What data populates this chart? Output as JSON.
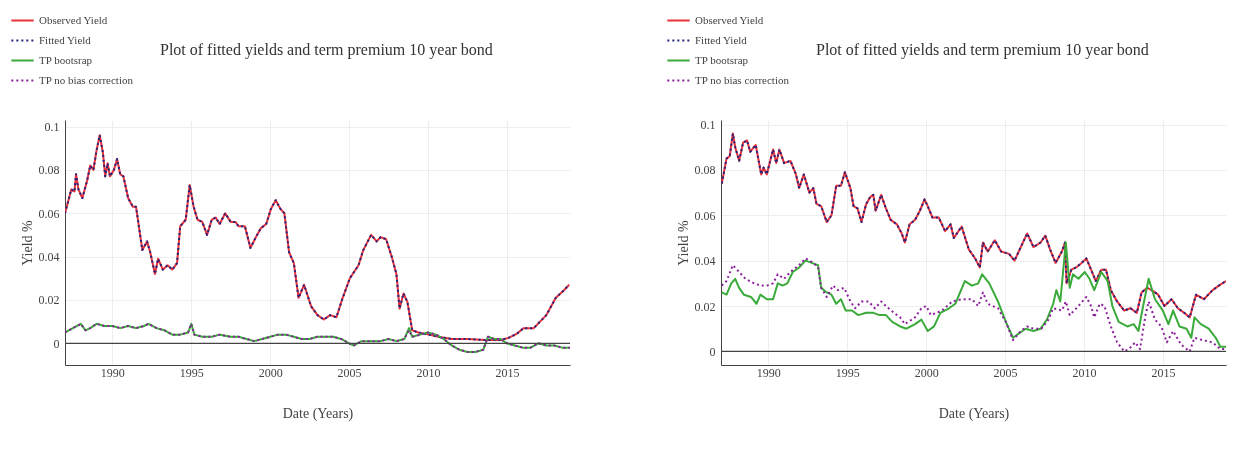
{
  "chart_data": [
    {
      "type": "line",
      "title": "Plot of fitted yields and term premium 10 year bond",
      "xlabel": "Date (Years)",
      "ylabel": "Yield %",
      "xlim": [
        1987,
        2019
      ],
      "xticks": [
        1990,
        1995,
        2000,
        2005,
        2010,
        2015
      ],
      "ylim": [
        -0.01,
        0.103
      ],
      "yticks": [
        0,
        0.02,
        0.04,
        0.06,
        0.08,
        0.1
      ],
      "grid": true,
      "legend": "top left",
      "ref_lines": [
        {
          "axis": "y",
          "value": 0,
          "color": "#444444"
        }
      ],
      "series": [
        {
          "name": "Observed Yield",
          "color": "#e8323c",
          "line_style": "solid",
          "x": [
            1987.0,
            1987.4,
            1987.6,
            1987.7,
            1987.85,
            1988.1,
            1988.4,
            1988.6,
            1988.8,
            1989.0,
            1989.2,
            1989.4,
            1989.55,
            1989.7,
            1989.85,
            1990.1,
            1990.3,
            1990.5,
            1990.7,
            1991.0,
            1991.3,
            1991.5,
            1991.9,
            1992.2,
            1992.4,
            1992.7,
            1992.9,
            1993.2,
            1993.5,
            1993.8,
            1994.1,
            1994.3,
            1994.65,
            1994.9,
            1995.15,
            1995.4,
            1995.7,
            1996.0,
            1996.3,
            1996.55,
            1996.8,
            1997.15,
            1997.5,
            1997.8,
            1998.0,
            1998.4,
            1998.75,
            1999.1,
            1999.4,
            1999.75,
            2000.05,
            2000.35,
            2000.65,
            2000.9,
            2001.2,
            2001.5,
            2001.8,
            2002.15,
            2002.6,
            2003.0,
            2003.4,
            2003.8,
            2004.2,
            2004.55,
            2005.05,
            2005.6,
            2005.9,
            2006.4,
            2006.75,
            2007.0,
            2007.35,
            2007.7,
            2008.0,
            2008.2,
            2008.45,
            2008.7,
            2009.0,
            2009.4,
            2010.05,
            2010.65,
            2011.5,
            2012.5,
            2013.6,
            2014.6,
            2015.1,
            2015.65,
            2016.05,
            2016.7,
            2017.1,
            2017.5,
            2018.1,
            2018.55,
            2018.95
          ],
          "values": [
            0.06,
            0.071,
            0.07,
            0.078,
            0.071,
            0.067,
            0.075,
            0.082,
            0.08,
            0.089,
            0.096,
            0.088,
            0.077,
            0.083,
            0.077,
            0.08,
            0.085,
            0.078,
            0.077,
            0.067,
            0.063,
            0.063,
            0.043,
            0.047,
            0.042,
            0.032,
            0.039,
            0.034,
            0.036,
            0.034,
            0.037,
            0.054,
            0.057,
            0.073,
            0.063,
            0.057,
            0.056,
            0.05,
            0.057,
            0.058,
            0.055,
            0.06,
            0.056,
            0.056,
            0.054,
            0.054,
            0.044,
            0.049,
            0.053,
            0.055,
            0.062,
            0.066,
            0.062,
            0.06,
            0.042,
            0.037,
            0.021,
            0.027,
            0.017,
            0.013,
            0.011,
            0.013,
            0.012,
            0.02,
            0.03,
            0.036,
            0.043,
            0.05,
            0.047,
            0.049,
            0.048,
            0.04,
            0.032,
            0.016,
            0.023,
            0.019,
            0.006,
            0.005,
            0.004,
            0.003,
            0.002,
            0.002,
            0.0015,
            0.0015,
            0.0025,
            0.0045,
            0.007,
            0.007,
            0.01,
            0.013,
            0.021,
            0.024,
            0.027
          ]
        },
        {
          "name": "Fitted Yield",
          "color": "#23237e",
          "line_style": "dotted",
          "x": [
            1987.0,
            1987.4,
            1987.6,
            1987.7,
            1987.85,
            1988.1,
            1988.4,
            1988.6,
            1988.8,
            1989.0,
            1989.2,
            1989.4,
            1989.55,
            1989.7,
            1989.85,
            1990.1,
            1990.3,
            1990.5,
            1990.7,
            1991.0,
            1991.3,
            1991.5,
            1991.9,
            1992.2,
            1992.4,
            1992.7,
            1992.9,
            1993.2,
            1993.5,
            1993.8,
            1994.1,
            1994.3,
            1994.65,
            1994.9,
            1995.15,
            1995.4,
            1995.7,
            1996.0,
            1996.3,
            1996.55,
            1996.8,
            1997.15,
            1997.5,
            1997.8,
            1998.0,
            1998.4,
            1998.75,
            1999.1,
            1999.4,
            1999.75,
            2000.05,
            2000.35,
            2000.65,
            2000.9,
            2001.2,
            2001.5,
            2001.8,
            2002.15,
            2002.6,
            2003.0,
            2003.4,
            2003.8,
            2004.2,
            2004.55,
            2005.05,
            2005.6,
            2005.9,
            2006.4,
            2006.75,
            2007.0,
            2007.35,
            2007.7,
            2008.0,
            2008.2,
            2008.45,
            2008.7,
            2009.0,
            2009.4,
            2010.05,
            2010.65,
            2011.5,
            2012.5,
            2013.6,
            2014.6,
            2015.1,
            2015.65,
            2016.05,
            2016.7,
            2017.1,
            2017.5,
            2018.1,
            2018.55,
            2018.95
          ],
          "values": [
            0.06,
            0.071,
            0.07,
            0.078,
            0.071,
            0.067,
            0.075,
            0.082,
            0.08,
            0.089,
            0.096,
            0.088,
            0.077,
            0.083,
            0.077,
            0.08,
            0.085,
            0.078,
            0.077,
            0.067,
            0.063,
            0.063,
            0.043,
            0.047,
            0.042,
            0.032,
            0.039,
            0.034,
            0.036,
            0.034,
            0.037,
            0.054,
            0.057,
            0.073,
            0.063,
            0.057,
            0.056,
            0.05,
            0.057,
            0.058,
            0.055,
            0.06,
            0.056,
            0.056,
            0.054,
            0.054,
            0.044,
            0.049,
            0.053,
            0.055,
            0.062,
            0.066,
            0.062,
            0.06,
            0.042,
            0.037,
            0.021,
            0.027,
            0.017,
            0.013,
            0.011,
            0.013,
            0.012,
            0.02,
            0.03,
            0.036,
            0.043,
            0.05,
            0.047,
            0.049,
            0.048,
            0.04,
            0.032,
            0.016,
            0.023,
            0.019,
            0.006,
            0.005,
            0.004,
            0.003,
            0.002,
            0.002,
            0.0015,
            0.0015,
            0.0025,
            0.0045,
            0.007,
            0.007,
            0.01,
            0.013,
            0.021,
            0.024,
            0.027
          ]
        },
        {
          "name": "TP bootsrap",
          "color": "#3aab3a",
          "line_style": "solid",
          "x": [
            1987,
            1987.5,
            1988,
            1988.3,
            1988.6,
            1989,
            1989.5,
            1990,
            1990.5,
            1991,
            1991.5,
            1992,
            1992.3,
            1992.8,
            1993.3,
            1993.8,
            1994.3,
            1994.8,
            1995,
            1995.2,
            1995.7,
            1996.3,
            1996.8,
            1997.5,
            1998,
            1998.5,
            1999,
            1999.5,
            2000,
            2000.5,
            2001,
            2001.5,
            2002,
            2002.5,
            2003,
            2003.5,
            2004,
            2004.5,
            2005,
            2005.3,
            2005.8,
            2006.5,
            2007,
            2007.5,
            2008,
            2008.5,
            2008.8,
            2009,
            2009.5,
            2010,
            2010.5,
            2011,
            2011.5,
            2012,
            2012.5,
            2013,
            2013.5,
            2013.8,
            2014.2,
            2014.6,
            2015,
            2015.5,
            2016,
            2016.5,
            2017,
            2017.5,
            2018,
            2018.5,
            2019
          ],
          "values": [
            0.005,
            0.007,
            0.009,
            0.006,
            0.007,
            0.009,
            0.008,
            0.008,
            0.007,
            0.008,
            0.007,
            0.008,
            0.009,
            0.007,
            0.006,
            0.004,
            0.004,
            0.005,
            0.009,
            0.004,
            0.003,
            0.003,
            0.004,
            0.003,
            0.003,
            0.002,
            0.001,
            0.002,
            0.003,
            0.004,
            0.004,
            0.003,
            0.002,
            0.002,
            0.003,
            0.003,
            0.003,
            0.002,
            0.0,
            -0.001,
            0.001,
            0.001,
            0.001,
            0.002,
            0.001,
            0.002,
            0.007,
            0.003,
            0.004,
            0.005,
            0.004,
            0.002,
            -0.001,
            -0.003,
            -0.004,
            -0.004,
            -0.003,
            0.003,
            0.002,
            0.002,
            0.0,
            -0.001,
            -0.002,
            -0.002,
            0.0,
            -0.001,
            -0.001,
            -0.002,
            -0.002
          ]
        },
        {
          "name": "TP no bias correction",
          "color": "#8b1f9b",
          "line_style": "dotted",
          "x": [
            1987,
            1987.5,
            1988,
            1988.3,
            1988.6,
            1989,
            1989.5,
            1990,
            1990.5,
            1991,
            1991.5,
            1992,
            1992.3,
            1992.8,
            1993.3,
            1993.8,
            1994.3,
            1994.8,
            1995,
            1995.2,
            1995.7,
            1996.3,
            1996.8,
            1997.5,
            1998,
            1998.5,
            1999,
            1999.5,
            2000,
            2000.5,
            2001,
            2001.5,
            2002,
            2002.5,
            2003,
            2003.5,
            2004,
            2004.5,
            2005,
            2005.3,
            2005.8,
            2006.5,
            2007,
            2007.5,
            2008,
            2008.5,
            2008.8,
            2009,
            2009.5,
            2010,
            2010.5,
            2011,
            2011.5,
            2012,
            2012.5,
            2013,
            2013.5,
            2013.8,
            2014.2,
            2014.6,
            2015,
            2015.5,
            2016,
            2016.5,
            2017,
            2017.5,
            2018,
            2018.5,
            2019
          ],
          "values": [
            0.005,
            0.007,
            0.009,
            0.006,
            0.007,
            0.009,
            0.008,
            0.008,
            0.007,
            0.008,
            0.007,
            0.008,
            0.009,
            0.007,
            0.006,
            0.004,
            0.004,
            0.005,
            0.009,
            0.004,
            0.003,
            0.003,
            0.004,
            0.003,
            0.003,
            0.002,
            0.001,
            0.002,
            0.003,
            0.004,
            0.004,
            0.003,
            0.002,
            0.002,
            0.003,
            0.003,
            0.003,
            0.002,
            0.0,
            -0.001,
            0.001,
            0.001,
            0.001,
            0.002,
            0.001,
            0.002,
            0.006,
            0.003,
            0.004,
            0.005,
            0.004,
            0.002,
            -0.001,
            -0.003,
            -0.004,
            -0.004,
            -0.003,
            0.003,
            0.002,
            0.002,
            0.0,
            -0.001,
            -0.002,
            -0.002,
            0.0,
            -0.001,
            -0.001,
            -0.002,
            -0.002
          ]
        }
      ]
    },
    {
      "type": "line",
      "title": "Plot of fitted yields and term premium 10 year bond",
      "xlabel": "Date (Years)",
      "ylabel": "Yield %",
      "xlim": [
        1987,
        2019
      ],
      "xticks": [
        1990,
        1995,
        2000,
        2005,
        2010,
        2015
      ],
      "ylim": [
        -0.006,
        0.102
      ],
      "yticks": [
        0,
        0.02,
        0.04,
        0.06,
        0.08,
        0.1
      ],
      "grid": true,
      "legend": "top left",
      "ref_lines": [
        {
          "axis": "y",
          "value": 0,
          "color": "#444444"
        }
      ],
      "series": [
        {
          "name": "Observed Yield",
          "color": "#e8323c",
          "line_style": "solid",
          "x": [
            1987.05,
            1987.35,
            1987.55,
            1987.75,
            1987.9,
            1988.15,
            1988.4,
            1988.65,
            1988.85,
            1989.2,
            1989.55,
            1989.7,
            1989.9,
            1990.3,
            1990.5,
            1990.7,
            1991.0,
            1991.4,
            1991.75,
            1991.95,
            1992.25,
            1992.6,
            1992.85,
            1993.05,
            1993.35,
            1993.7,
            1994.0,
            1994.3,
            1994.6,
            1994.85,
            1995.2,
            1995.4,
            1995.65,
            1995.9,
            1996.2,
            1996.45,
            1996.65,
            1996.8,
            1997.15,
            1997.45,
            1997.75,
            1998.15,
            1998.45,
            1998.65,
            1998.95,
            1999.3,
            1999.6,
            1999.9,
            2000.1,
            2000.4,
            2000.8,
            2001.2,
            2001.55,
            2001.75,
            2002.25,
            2002.7,
            2003.1,
            2003.4,
            2003.6,
            2003.9,
            2004.35,
            2004.75,
            2005.25,
            2005.6,
            2006.0,
            2006.4,
            2006.8,
            2007.25,
            2007.55,
            2007.85,
            2008.2,
            2008.6,
            2008.8,
            2008.9,
            2009.2,
            2009.5,
            2009.85,
            2010.15,
            2010.45,
            2010.75,
            2011.1,
            2011.4,
            2011.7,
            2012.1,
            2012.55,
            2012.95,
            2013.35,
            2013.65,
            2014.0,
            2014.3,
            2014.7,
            2015.1,
            2015.55,
            2015.95,
            2016.35,
            2016.7,
            2017.1,
            2017.6,
            2018.15,
            2018.55,
            2019.0
          ],
          "values": [
            0.074,
            0.085,
            0.086,
            0.096,
            0.09,
            0.084,
            0.092,
            0.093,
            0.088,
            0.091,
            0.078,
            0.081,
            0.078,
            0.089,
            0.083,
            0.089,
            0.083,
            0.084,
            0.078,
            0.072,
            0.078,
            0.07,
            0.072,
            0.065,
            0.064,
            0.057,
            0.06,
            0.073,
            0.073,
            0.079,
            0.072,
            0.064,
            0.063,
            0.057,
            0.065,
            0.068,
            0.069,
            0.062,
            0.069,
            0.063,
            0.058,
            0.056,
            0.052,
            0.048,
            0.056,
            0.058,
            0.062,
            0.067,
            0.064,
            0.059,
            0.059,
            0.053,
            0.056,
            0.05,
            0.055,
            0.045,
            0.041,
            0.037,
            0.048,
            0.044,
            0.049,
            0.044,
            0.043,
            0.04,
            0.046,
            0.052,
            0.046,
            0.048,
            0.051,
            0.045,
            0.039,
            0.044,
            0.048,
            0.03,
            0.036,
            0.037,
            0.039,
            0.041,
            0.036,
            0.031,
            0.036,
            0.036,
            0.027,
            0.022,
            0.018,
            0.019,
            0.017,
            0.026,
            0.028,
            0.027,
            0.025,
            0.02,
            0.023,
            0.019,
            0.017,
            0.015,
            0.025,
            0.023,
            0.027,
            0.029,
            0.031
          ]
        },
        {
          "name": "Fitted Yield",
          "color": "#23237e",
          "line_style": "dotted",
          "x": [
            1987.05,
            1987.35,
            1987.55,
            1987.75,
            1987.9,
            1988.15,
            1988.4,
            1988.65,
            1988.85,
            1989.2,
            1989.55,
            1989.7,
            1989.9,
            1990.3,
            1990.5,
            1990.7,
            1991.0,
            1991.4,
            1991.75,
            1991.95,
            1992.25,
            1992.6,
            1992.85,
            1993.05,
            1993.35,
            1993.7,
            1994.0,
            1994.3,
            1994.6,
            1994.85,
            1995.2,
            1995.4,
            1995.65,
            1995.9,
            1996.2,
            1996.45,
            1996.65,
            1996.8,
            1997.15,
            1997.45,
            1997.75,
            1998.15,
            1998.45,
            1998.65,
            1998.95,
            1999.3,
            1999.6,
            1999.9,
            2000.1,
            2000.4,
            2000.8,
            2001.2,
            2001.55,
            2001.75,
            2002.25,
            2002.7,
            2003.1,
            2003.4,
            2003.6,
            2003.9,
            2004.35,
            2004.75,
            2005.25,
            2005.6,
            2006.0,
            2006.4,
            2006.8,
            2007.25,
            2007.55,
            2007.85,
            2008.2,
            2008.6,
            2008.8,
            2008.9,
            2009.2,
            2009.5,
            2009.85,
            2010.15,
            2010.45,
            2010.75,
            2011.1,
            2011.4,
            2011.7,
            2012.1,
            2012.55,
            2012.95,
            2013.35,
            2013.65,
            2014.0,
            2014.3,
            2014.7,
            2015.1,
            2015.55,
            2015.95,
            2016.35,
            2016.7,
            2017.1,
            2017.6,
            2018.15,
            2018.55,
            2019.0
          ],
          "values": [
            0.074,
            0.085,
            0.086,
            0.096,
            0.09,
            0.084,
            0.092,
            0.093,
            0.088,
            0.091,
            0.078,
            0.081,
            0.078,
            0.089,
            0.083,
            0.089,
            0.083,
            0.084,
            0.078,
            0.072,
            0.078,
            0.07,
            0.072,
            0.065,
            0.064,
            0.057,
            0.06,
            0.073,
            0.073,
            0.079,
            0.072,
            0.064,
            0.063,
            0.057,
            0.065,
            0.068,
            0.069,
            0.062,
            0.069,
            0.063,
            0.058,
            0.056,
            0.052,
            0.048,
            0.056,
            0.058,
            0.062,
            0.067,
            0.064,
            0.059,
            0.059,
            0.053,
            0.056,
            0.05,
            0.055,
            0.045,
            0.041,
            0.037,
            0.048,
            0.044,
            0.049,
            0.044,
            0.043,
            0.04,
            0.046,
            0.052,
            0.046,
            0.048,
            0.051,
            0.045,
            0.039,
            0.044,
            0.048,
            0.03,
            0.036,
            0.037,
            0.039,
            0.041,
            0.036,
            0.031,
            0.036,
            0.036,
            0.027,
            0.022,
            0.018,
            0.019,
            0.017,
            0.026,
            0.028,
            0.027,
            0.025,
            0.02,
            0.023,
            0.019,
            0.017,
            0.015,
            0.025,
            0.023,
            0.027,
            0.029,
            0.031
          ]
        },
        {
          "name": "TP bootsrap",
          "color": "#3aab3a",
          "line_style": "solid",
          "x": [
            1987.05,
            1987.35,
            1987.65,
            1987.9,
            1988.15,
            1988.45,
            1988.9,
            1989.25,
            1989.5,
            1989.9,
            1990.3,
            1990.6,
            1990.9,
            1991.2,
            1991.55,
            1991.95,
            1992.35,
            1992.75,
            1993.15,
            1993.35,
            1993.7,
            1994.0,
            1994.3,
            1994.6,
            1994.9,
            1995.3,
            1995.7,
            1996.2,
            1996.65,
            1997.05,
            1997.45,
            1997.85,
            1998.35,
            1998.75,
            1999.3,
            1999.7,
            2000.1,
            2000.5,
            2000.9,
            2001.45,
            2001.85,
            2002.45,
            2002.9,
            2003.3,
            2003.55,
            2004.0,
            2004.55,
            2005.05,
            2005.5,
            2005.9,
            2006.3,
            2006.8,
            2007.25,
            2007.65,
            2008.05,
            2008.25,
            2008.5,
            2008.85,
            2009.1,
            2009.3,
            2009.65,
            2010.05,
            2010.35,
            2010.65,
            2011.1,
            2011.5,
            2011.8,
            2012.2,
            2012.75,
            2013.15,
            2013.45,
            2013.75,
            2014.1,
            2014.5,
            2015.0,
            2015.35,
            2015.65,
            2016.05,
            2016.5,
            2016.8,
            2017.0,
            2017.4,
            2017.9,
            2018.35,
            2018.65,
            2019.0
          ],
          "values": [
            0.026,
            0.025,
            0.03,
            0.032,
            0.028,
            0.025,
            0.024,
            0.021,
            0.025,
            0.023,
            0.023,
            0.03,
            0.029,
            0.03,
            0.035,
            0.037,
            0.04,
            0.039,
            0.038,
            0.028,
            0.026,
            0.025,
            0.021,
            0.023,
            0.018,
            0.018,
            0.016,
            0.017,
            0.017,
            0.016,
            0.016,
            0.013,
            0.011,
            0.01,
            0.012,
            0.014,
            0.009,
            0.011,
            0.017,
            0.019,
            0.021,
            0.031,
            0.029,
            0.03,
            0.034,
            0.03,
            0.022,
            0.013,
            0.006,
            0.008,
            0.01,
            0.009,
            0.01,
            0.014,
            0.021,
            0.027,
            0.022,
            0.048,
            0.028,
            0.034,
            0.032,
            0.035,
            0.032,
            0.027,
            0.035,
            0.031,
            0.02,
            0.013,
            0.011,
            0.012,
            0.009,
            0.02,
            0.032,
            0.023,
            0.018,
            0.012,
            0.018,
            0.011,
            0.01,
            0.006,
            0.015,
            0.012,
            0.01,
            0.006,
            0.002,
            0.002
          ]
        },
        {
          "name": "TP no bias correction",
          "color": "#8b1f9b",
          "line_style": "dotted",
          "x": [
            1987.05,
            1987.35,
            1987.75,
            1988.15,
            1988.55,
            1989.1,
            1989.5,
            1989.9,
            1990.3,
            1990.6,
            1991.0,
            1991.4,
            1991.95,
            1992.35,
            1992.85,
            1993.15,
            1993.35,
            1993.7,
            1994.1,
            1994.4,
            1994.8,
            1995.2,
            1995.5,
            1995.9,
            1996.35,
            1996.75,
            1997.15,
            1997.45,
            1997.95,
            1998.35,
            1998.65,
            1999.3,
            1999.7,
            2000.0,
            2000.3,
            2001.0,
            2001.65,
            2002.25,
            2002.9,
            2003.3,
            2003.6,
            2003.9,
            2004.55,
            2005.05,
            2005.5,
            2006.0,
            2006.4,
            2006.8,
            2007.3,
            2007.75,
            2008.05,
            2008.6,
            2008.85,
            2009.1,
            2009.65,
            2010.15,
            2010.45,
            2010.65,
            2011.0,
            2011.3,
            2011.7,
            2012.1,
            2012.55,
            2012.85,
            2013.25,
            2013.55,
            2013.9,
            2014.1,
            2014.5,
            2014.9,
            2015.25,
            2015.65,
            2016.15,
            2016.7,
            2017.0,
            2017.5,
            2018.15,
            2018.65,
            2019.0
          ],
          "values": [
            0.029,
            0.031,
            0.038,
            0.035,
            0.032,
            0.03,
            0.029,
            0.029,
            0.03,
            0.034,
            0.032,
            0.035,
            0.038,
            0.041,
            0.039,
            0.037,
            0.028,
            0.024,
            0.029,
            0.027,
            0.028,
            0.022,
            0.019,
            0.022,
            0.022,
            0.019,
            0.022,
            0.02,
            0.017,
            0.015,
            0.012,
            0.015,
            0.019,
            0.02,
            0.016,
            0.018,
            0.022,
            0.023,
            0.023,
            0.02,
            0.026,
            0.021,
            0.019,
            0.013,
            0.005,
            0.009,
            0.011,
            0.01,
            0.01,
            0.014,
            0.019,
            0.018,
            0.022,
            0.016,
            0.02,
            0.024,
            0.02,
            0.015,
            0.021,
            0.02,
            0.011,
            0.004,
            0.0,
            0.001,
            0.004,
            0.001,
            0.016,
            0.022,
            0.014,
            0.011,
            0.004,
            0.009,
            0.003,
            0.0,
            0.006,
            0.005,
            0.004,
            0.001,
            0.001
          ]
        }
      ]
    }
  ]
}
